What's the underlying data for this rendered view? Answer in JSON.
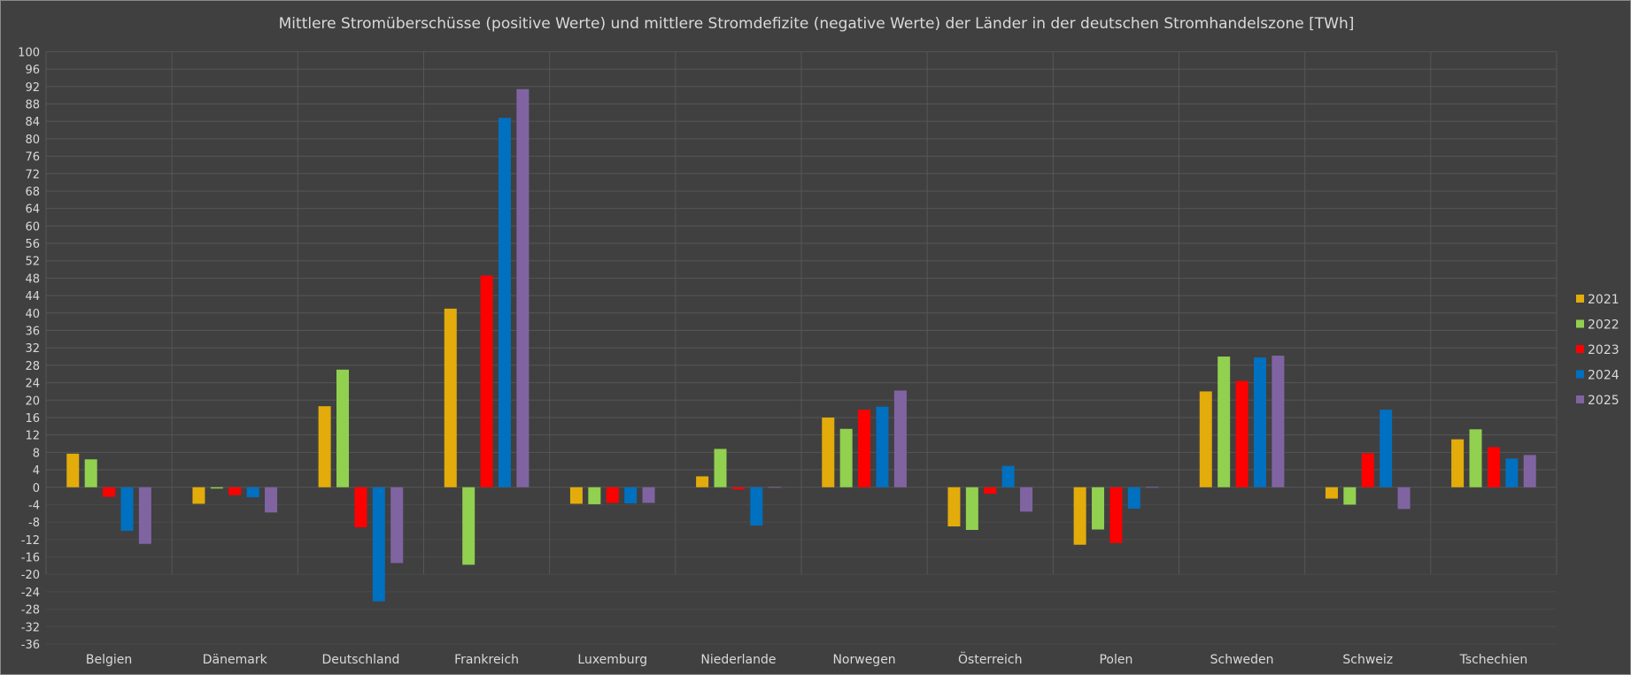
{
  "chart_data": {
    "type": "bar",
    "title": "Mittlere Stromüberschüsse (positive Werte) und mittlere Stromdefizite (negative Werte) der Länder in der deutschen Stromhandelszone [TWh]",
    "xlabel": "",
    "ylabel": "",
    "ylim": [
      -36,
      100
    ],
    "ytick_step": 4,
    "grid": true,
    "legend_position": "right",
    "categories": [
      "Belgien",
      "Dänemark",
      "Deutschland",
      "Frankreich",
      "Luxemburg",
      "Niederlande",
      "Norwegen",
      "Österreich",
      "Polen",
      "Schweden",
      "Schweiz",
      "Tschechien"
    ],
    "series": [
      {
        "name": "2021",
        "color": "#E3AC0A",
        "values": [
          7.7,
          -3.8,
          18.6,
          41.0,
          -3.8,
          2.5,
          16.0,
          -9.0,
          -13.2,
          22.0,
          -2.6,
          11.0
        ]
      },
      {
        "name": "2022",
        "color": "#92D050",
        "values": [
          6.4,
          -0.3,
          27.0,
          -17.8,
          -3.9,
          8.8,
          13.4,
          -9.8,
          -9.7,
          30.0,
          -4.0,
          13.3
        ]
      },
      {
        "name": "2023",
        "color": "#FF0000",
        "values": [
          -2.2,
          -1.8,
          -9.2,
          48.6,
          -3.6,
          -0.5,
          17.8,
          -1.5,
          -12.8,
          24.4,
          7.8,
          9.2
        ]
      },
      {
        "name": "2024",
        "color": "#0070C0",
        "values": [
          -10.0,
          -2.3,
          -26.2,
          84.8,
          -3.7,
          -8.8,
          18.5,
          4.9,
          -4.9,
          29.8,
          17.8,
          6.6
        ]
      },
      {
        "name": "2025",
        "color": "#8064A2",
        "values": [
          -13.0,
          -5.8,
          -17.4,
          91.4,
          -3.6,
          0.1,
          22.2,
          -5.6,
          0.1,
          30.2,
          -5.0,
          7.4
        ]
      }
    ]
  }
}
